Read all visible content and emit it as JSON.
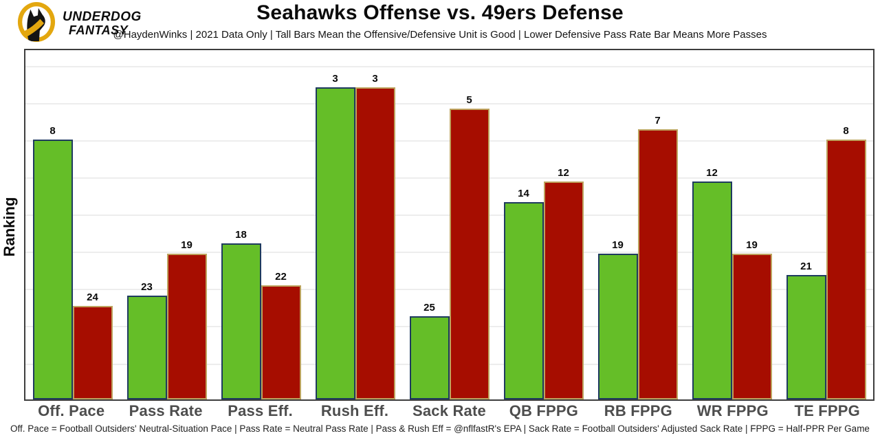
{
  "header": {
    "brand_line1": "UNDERDOG",
    "brand_line2": "FANTASY",
    "title": "Seahawks Offense vs. 49ers Defense",
    "subtitle": "@HaydenWinks | 2021 Data Only | Tall Bars Mean the Offensive/Defensive Unit is Good | Lower Defensive Pass Rate Bar Means More Passes"
  },
  "chart_data": {
    "type": "bar",
    "title": "Seahawks Offense vs. 49ers Defense",
    "ylabel": "Ranking",
    "categories": [
      "Off. Pace",
      "Pass Rate",
      "Pass Eff.",
      "Rush Eff.",
      "Sack Rate",
      "QB FPPG",
      "RB FPPG",
      "WR FPPG",
      "TE FPPG"
    ],
    "series": [
      {
        "name": "Seahawks Offense",
        "color": "#65be28",
        "edge_color": "#1e3a5f",
        "values": [
          8,
          23,
          18,
          3,
          25,
          14,
          19,
          12,
          21
        ]
      },
      {
        "name": "49ers Defense",
        "color": "#a60d00",
        "edge_color": "#bda35e",
        "values": [
          24,
          19,
          22,
          3,
          5,
          12,
          7,
          19,
          8
        ]
      }
    ],
    "rank_axis": {
      "best_rank": 1,
      "worst_rank": 32,
      "note": "bar height = (33 - rank) / 33.6 of plot height; rank 1 is tallest",
      "baseline": 33,
      "scale_max": 33.6
    },
    "grid": true,
    "gridline_count": 9,
    "legend": "none",
    "value_labels": "above bars"
  },
  "footer": {
    "note": "Off. Pace = Football Outsiders' Neutral-Situation Pace | Pass Rate = Neutral Pass Rate | Pass & Rush Eff = @nflfastR's EPA | Sack Rate = Football Outsiders' Adjusted Sack Rate | FPPG = Half-PPR Per Game"
  },
  "colors": {
    "offense_green": "#65be28",
    "defense_red": "#a60d00",
    "offense_edge": "#1e3a5f",
    "defense_edge": "#bda35e",
    "brand_gold": "#e3a70f",
    "gridline": "#ededed",
    "axis_label_gray": "#4d4d4d"
  }
}
